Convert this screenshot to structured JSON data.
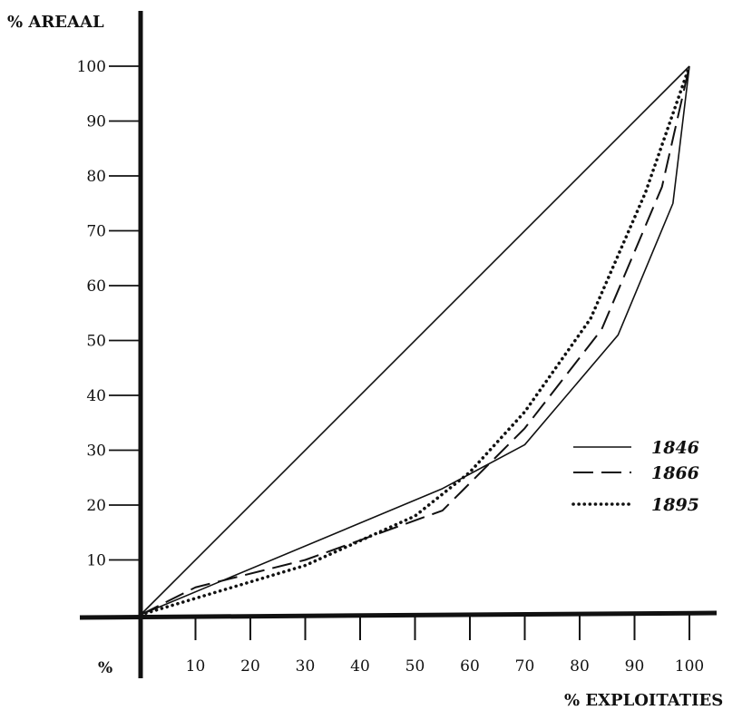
{
  "chart_data": {
    "type": "line",
    "ylabel": "% AREAAL",
    "xlabel": "% EXPLOITATIES",
    "origin_label": "%",
    "xlim": [
      0,
      100
    ],
    "ylim": [
      0,
      100
    ],
    "x_ticks": [
      10,
      20,
      30,
      40,
      50,
      60,
      70,
      80,
      90,
      100
    ],
    "y_ticks": [
      10,
      20,
      30,
      40,
      50,
      60,
      70,
      80,
      90,
      100
    ],
    "grid": false,
    "legend_position": "right",
    "reference_line": {
      "x": [
        0,
        100
      ],
      "y": [
        0,
        100
      ]
    },
    "series": [
      {
        "name": "1846",
        "style": "solid",
        "x": [
          0,
          55,
          70,
          87,
          97,
          100
        ],
        "y": [
          0,
          23,
          31,
          51,
          75,
          100
        ]
      },
      {
        "name": "1866",
        "style": "dashed",
        "x": [
          0,
          10,
          30,
          55,
          62,
          70,
          84,
          95,
          100
        ],
        "y": [
          0,
          5,
          10,
          19,
          26,
          34,
          52,
          78,
          100
        ]
      },
      {
        "name": "1895",
        "style": "dotted",
        "x": [
          0,
          10,
          30,
          50,
          60,
          70,
          82,
          92,
          100
        ],
        "y": [
          0,
          3,
          9,
          18,
          26,
          37,
          54,
          77,
          100
        ]
      }
    ]
  }
}
